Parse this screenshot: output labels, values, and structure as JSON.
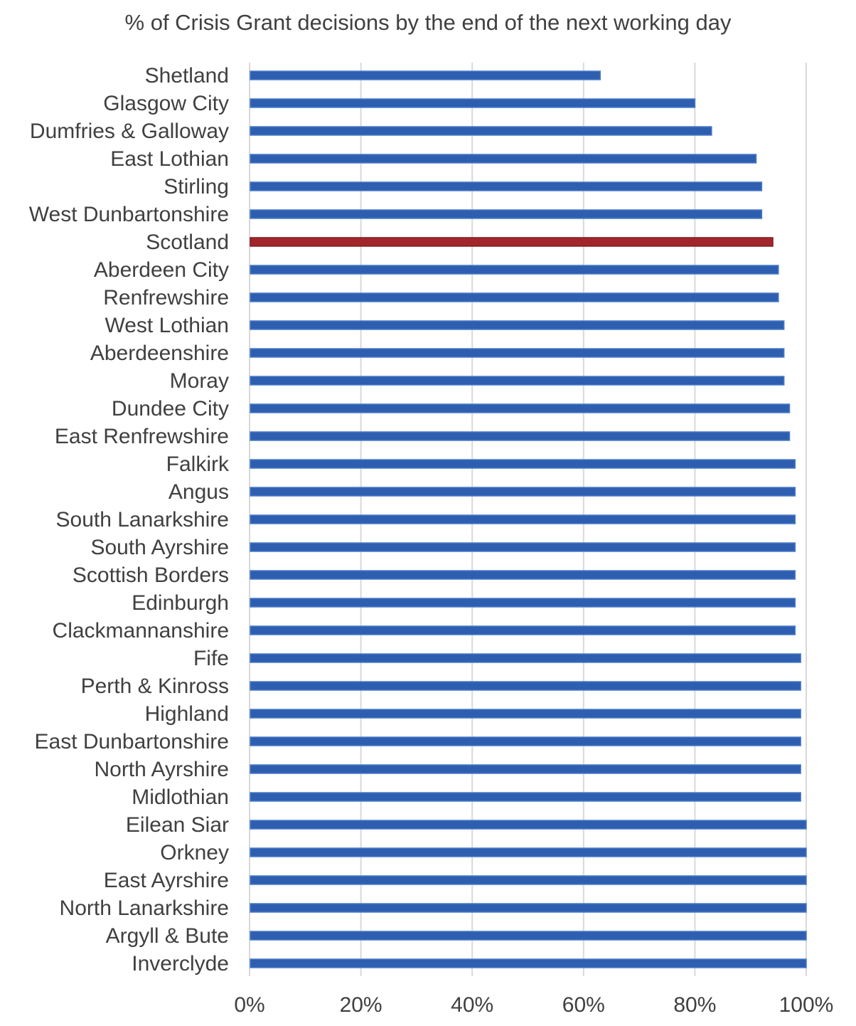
{
  "chart_data": {
    "type": "bar",
    "orientation": "horizontal",
    "title": "% of Crisis Grant decisions by the end of the next working day",
    "xlabel": "",
    "ylabel": "",
    "xlim": [
      0,
      100
    ],
    "x_ticks": [
      "0%",
      "20%",
      "40%",
      "60%",
      "80%",
      "100%"
    ],
    "grid": "vertical gridlines on",
    "legend": "none",
    "colors": {
      "default": "#2E5EB0",
      "highlight": "#A1262C",
      "grid": "#D9D9D9",
      "text": "#404040"
    },
    "highlight_category": "Scotland",
    "categories": [
      "Shetland",
      "Glasgow City",
      "Dumfries & Galloway",
      "East Lothian",
      "Stirling",
      "West Dunbartonshire",
      "Scotland",
      "Aberdeen City",
      "Renfrewshire",
      "West Lothian",
      "Aberdeenshire",
      "Moray",
      "Dundee City",
      "East Renfrewshire",
      "Falkirk",
      "Angus",
      "South Lanarkshire",
      "South Ayrshire",
      "Scottish Borders",
      "Edinburgh",
      "Clackmannanshire",
      "Fife",
      "Perth & Kinross",
      "Highland",
      "East Dunbartonshire",
      "North Ayrshire",
      "Midlothian",
      "Eilean Siar",
      "Orkney",
      "East Ayrshire",
      "North Lanarkshire",
      "Argyll & Bute",
      "Inverclyde"
    ],
    "values": [
      63,
      80,
      83,
      91,
      92,
      92,
      94,
      95,
      95,
      96,
      96,
      96,
      97,
      97,
      98,
      98,
      98,
      98,
      98,
      98,
      98,
      99,
      99,
      99,
      99,
      99,
      99,
      100,
      100,
      100,
      100,
      100,
      100
    ]
  }
}
